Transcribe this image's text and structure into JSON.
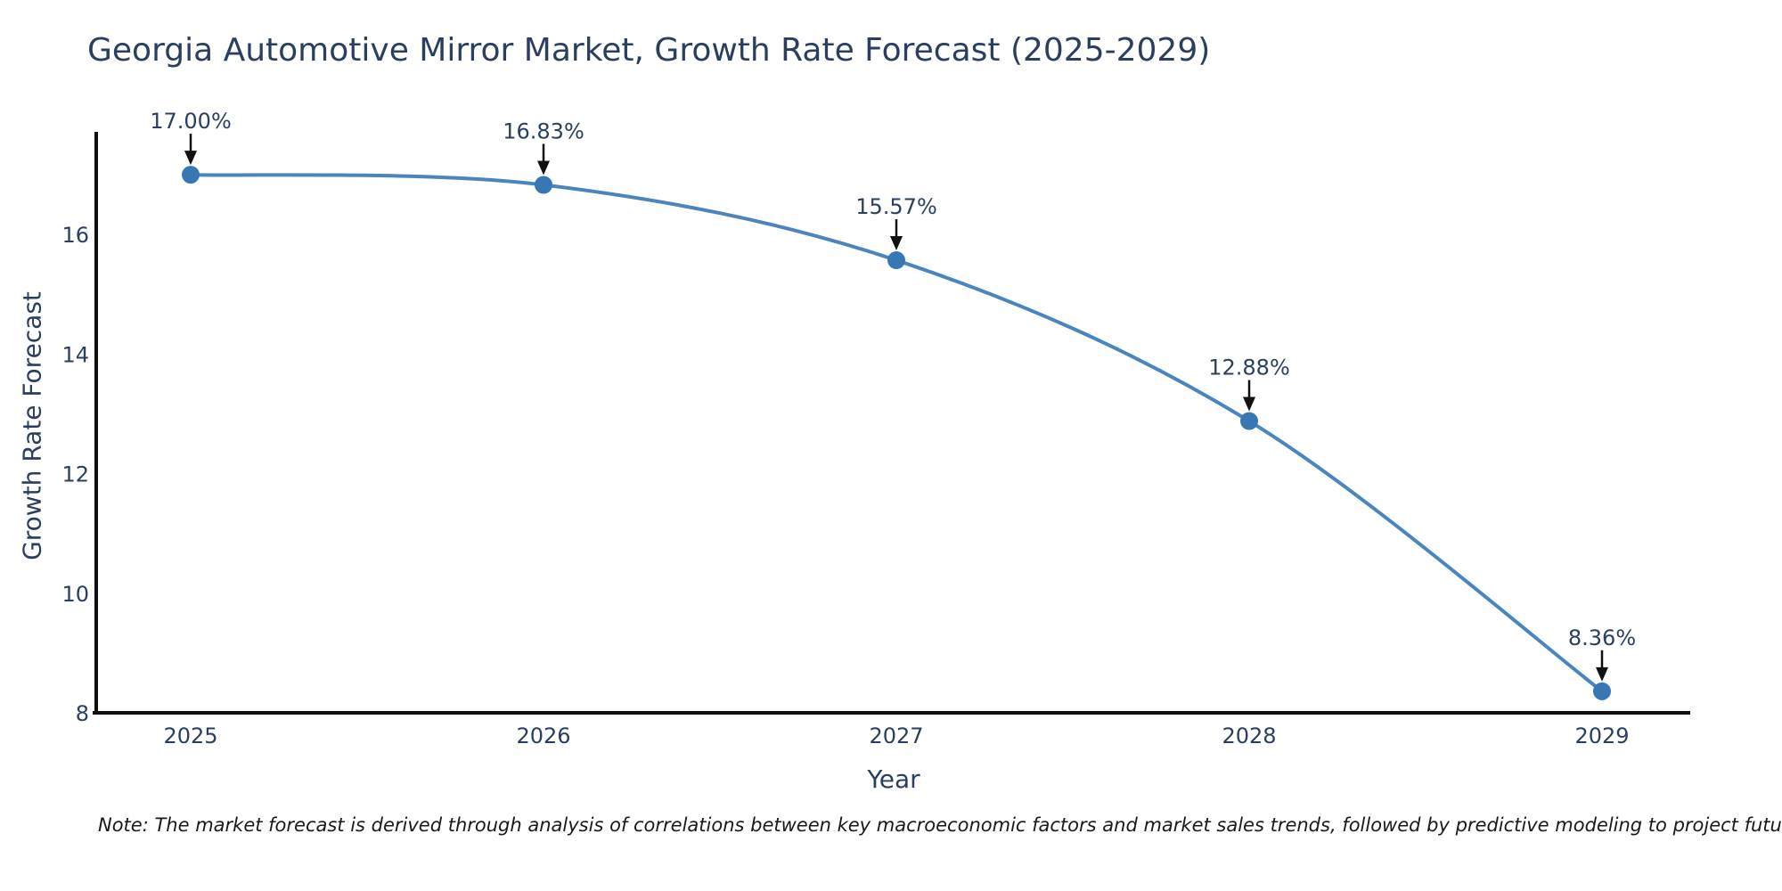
{
  "chart_data": {
    "type": "line",
    "title": "Georgia Automotive Mirror Market, Growth Rate Forecast (2025-2029)",
    "xlabel": "Year",
    "ylabel": "Growth Rate Forecast",
    "x": [
      2025,
      2026,
      2027,
      2028,
      2029
    ],
    "series": [
      {
        "name": "Growth Rate Forecast",
        "values": [
          17.0,
          16.83,
          15.57,
          12.88,
          8.36
        ]
      }
    ],
    "point_labels": [
      "17.00%",
      "16.83%",
      "15.57%",
      "12.88%",
      "8.36%"
    ],
    "yticks": [
      8,
      10,
      12,
      14,
      16
    ],
    "ylim": [
      8,
      17.7
    ],
    "grid": false,
    "legend": false,
    "note": "Note: The market forecast is derived through analysis of correlations between key macroeconomic factors and market sales trends, followed by predictive modeling to project future sales"
  },
  "style": {
    "background": "#ffffff",
    "line_color": "#4a86bd",
    "marker_color": "#3876b4",
    "text_color": "#2a3f5f",
    "axis_line_color": "#0f0f0f",
    "arrow_color": "#111111",
    "note_color": "#1a1a1a"
  }
}
